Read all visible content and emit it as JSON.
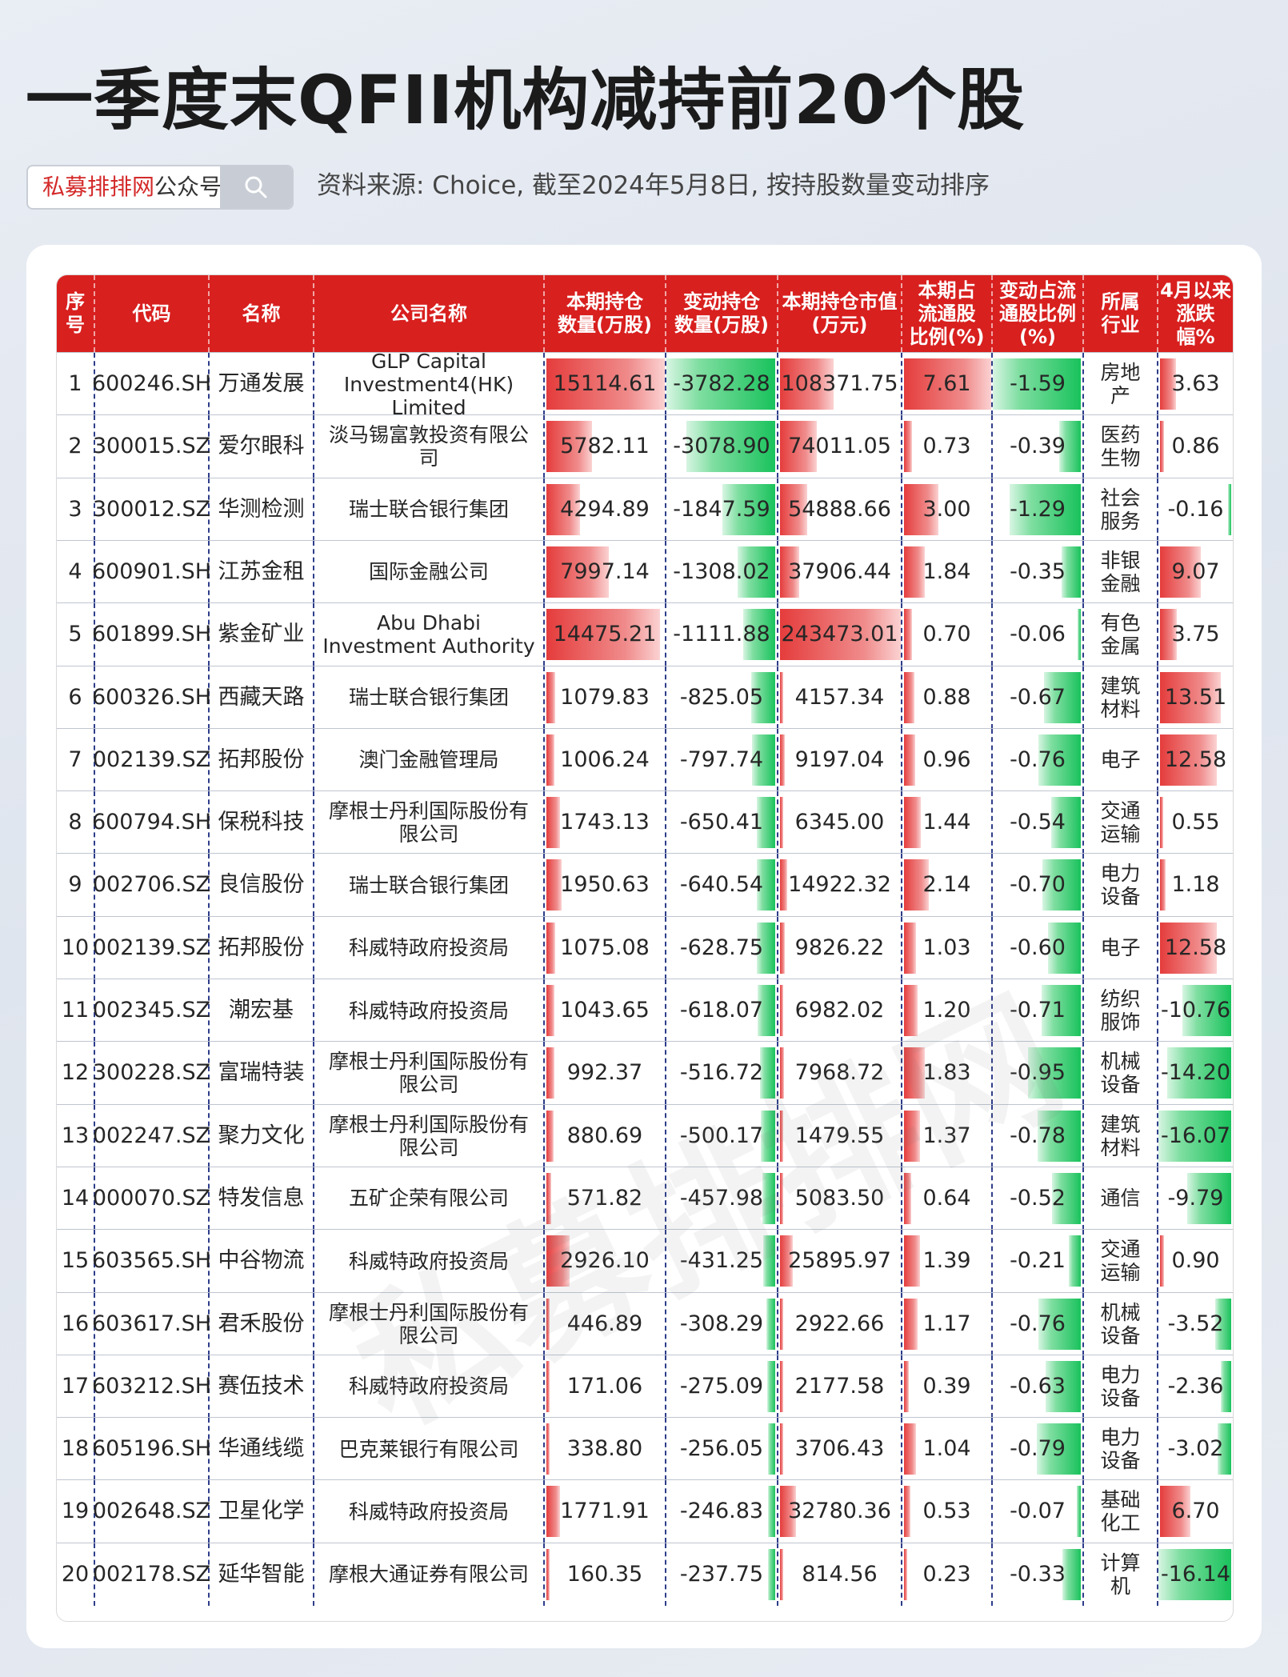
{
  "title": "一季度末QFII机构减持前20个股",
  "search": {
    "brand": "私募排排网",
    "suffix": "公众号"
  },
  "source": "资料来源: Choice, 截至2024年5月8日, 按持股数量变动排序",
  "watermark": "私募排排网",
  "colors": {
    "header": "#d8201f",
    "positive_bar": "#e53c3c",
    "negative_bar": "#19c25c",
    "grid": "#2e3d8a"
  },
  "headers": [
    "序\n号",
    "代码",
    "名称",
    "公司名称",
    "本期持仓\n数量(万股)",
    "变动持仓\n数量(万股)",
    "本期持仓市值\n(万元)",
    "本期占\n流通股\n比例(%)",
    "变动占流\n通股比例\n(%)",
    "所属\n行业",
    "4月以来\n涨跌幅%"
  ],
  "rows": [
    [
      "1",
      "600246.SH",
      "万通发展",
      "GLP Capital\nInvestment4(HK)\nLimited",
      "15114.61",
      "-3782.28",
      "108371.75",
      "7.61",
      "-1.59",
      "房地\n产",
      "3.63"
    ],
    [
      "2",
      "300015.SZ",
      "爱尔眼科",
      "淡马锡富敦投资有限公\n司",
      "5782.11",
      "-3078.90",
      "74011.05",
      "0.73",
      "-0.39",
      "医药\n生物",
      "0.86"
    ],
    [
      "3",
      "300012.SZ",
      "华测检测",
      "瑞士联合银行集团",
      "4294.89",
      "-1847.59",
      "54888.66",
      "3.00",
      "-1.29",
      "社会\n服务",
      "-0.16"
    ],
    [
      "4",
      "600901.SH",
      "江苏金租",
      "国际金融公司",
      "7997.14",
      "-1308.02",
      "37906.44",
      "1.84",
      "-0.35",
      "非银\n金融",
      "9.07"
    ],
    [
      "5",
      "601899.SH",
      "紫金矿业",
      "Abu Dhabi\nInvestment Authority",
      "14475.21",
      "-1111.88",
      "243473.01",
      "0.70",
      "-0.06",
      "有色\n金属",
      "3.75"
    ],
    [
      "6",
      "600326.SH",
      "西藏天路",
      "瑞士联合银行集团",
      "1079.83",
      "-825.05",
      "4157.34",
      "0.88",
      "-0.67",
      "建筑\n材料",
      "13.51"
    ],
    [
      "7",
      "002139.SZ",
      "拓邦股份",
      "澳门金融管理局",
      "1006.24",
      "-797.74",
      "9197.04",
      "0.96",
      "-0.76",
      "电子",
      "12.58"
    ],
    [
      "8",
      "600794.SH",
      "保税科技",
      "摩根士丹利国际股份有\n限公司",
      "1743.13",
      "-650.41",
      "6345.00",
      "1.44",
      "-0.54",
      "交通\n运输",
      "0.55"
    ],
    [
      "9",
      "002706.SZ",
      "良信股份",
      "瑞士联合银行集团",
      "1950.63",
      "-640.54",
      "14922.32",
      "2.14",
      "-0.70",
      "电力\n设备",
      "1.18"
    ],
    [
      "10",
      "002139.SZ",
      "拓邦股份",
      "科威特政府投资局",
      "1075.08",
      "-628.75",
      "9826.22",
      "1.03",
      "-0.60",
      "电子",
      "12.58"
    ],
    [
      "11",
      "002345.SZ",
      "潮宏基",
      "科威特政府投资局",
      "1043.65",
      "-618.07",
      "6982.02",
      "1.20",
      "-0.71",
      "纺织\n服饰",
      "-10.76"
    ],
    [
      "12",
      "300228.SZ",
      "富瑞特装",
      "摩根士丹利国际股份有\n限公司",
      "992.37",
      "-516.72",
      "7968.72",
      "1.83",
      "-0.95",
      "机械\n设备",
      "-14.20"
    ],
    [
      "13",
      "002247.SZ",
      "聚力文化",
      "摩根士丹利国际股份有\n限公司",
      "880.69",
      "-500.17",
      "1479.55",
      "1.37",
      "-0.78",
      "建筑\n材料",
      "-16.07"
    ],
    [
      "14",
      "000070.SZ",
      "特发信息",
      "五矿企荣有限公司",
      "571.82",
      "-457.98",
      "5083.50",
      "0.64",
      "-0.52",
      "通信",
      "-9.79"
    ],
    [
      "15",
      "603565.SH",
      "中谷物流",
      "科威特政府投资局",
      "2926.10",
      "-431.25",
      "25895.97",
      "1.39",
      "-0.21",
      "交通\n运输",
      "0.90"
    ],
    [
      "16",
      "603617.SH",
      "君禾股份",
      "摩根士丹利国际股份有\n限公司",
      "446.89",
      "-308.29",
      "2922.66",
      "1.17",
      "-0.76",
      "机械\n设备",
      "-3.52"
    ],
    [
      "17",
      "603212.SH",
      "赛伍技术",
      "科威特政府投资局",
      "171.06",
      "-275.09",
      "2177.58",
      "0.39",
      "-0.63",
      "电力\n设备",
      "-2.36"
    ],
    [
      "18",
      "605196.SH",
      "华通线缆",
      "巴克莱银行有限公司",
      "338.80",
      "-256.05",
      "3706.43",
      "1.04",
      "-0.79",
      "电力\n设备",
      "-3.02"
    ],
    [
      "19",
      "002648.SZ",
      "卫星化学",
      "科威特政府投资局",
      "1771.91",
      "-246.83",
      "32780.36",
      "0.53",
      "-0.07",
      "基础\n化工",
      "6.70"
    ],
    [
      "20",
      "002178.SZ",
      "延华智能",
      "摩根大通证券有限公司",
      "160.35",
      "-237.75",
      "814.56",
      "0.23",
      "-0.33",
      "计算\n机",
      "-16.14"
    ]
  ]
}
